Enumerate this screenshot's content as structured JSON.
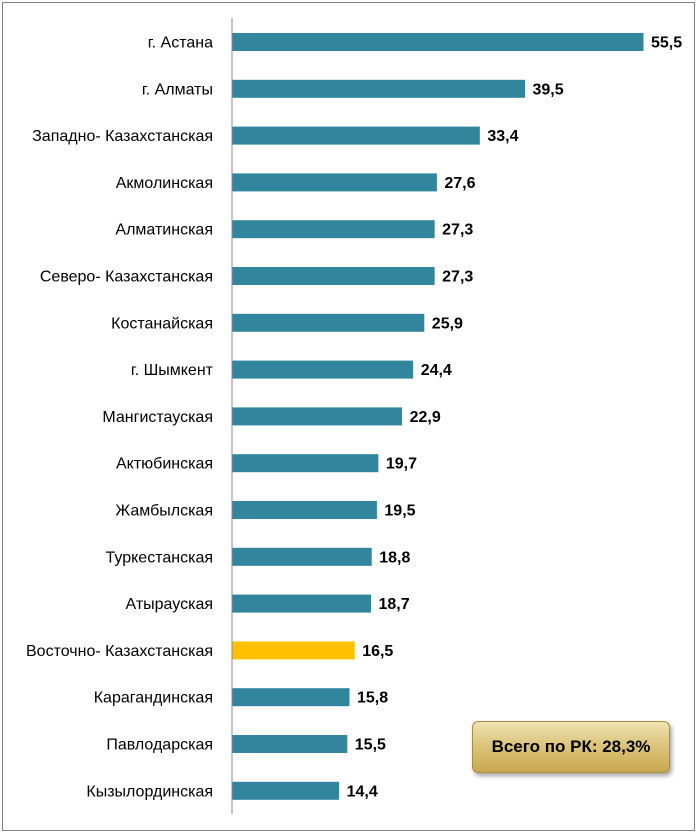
{
  "chart_data": {
    "type": "bar",
    "orientation": "horizontal",
    "categories": [
      "г. Астана",
      "г. Алматы",
      "Западно- Казахстанская",
      "Акмолинская",
      "Алматинская",
      "Северо- Казахстанская",
      "Костанайская",
      "г. Шымкент",
      "Мангистауская",
      "Актюбинская",
      "Жамбылская",
      "Туркестанская",
      "Атырауская",
      "Восточно- Казахстанская",
      "Карагандинская",
      "Павлодарская",
      "Кызылординская"
    ],
    "values": [
      55.5,
      39.5,
      33.4,
      27.6,
      27.3,
      27.3,
      25.9,
      24.4,
      22.9,
      19.7,
      19.5,
      18.8,
      18.7,
      16.5,
      15.8,
      15.5,
      14.4
    ],
    "value_labels": [
      "55,5",
      "39,5",
      "33,4",
      "27,6",
      "27,3",
      "27,3",
      "25,9",
      "24,4",
      "22,9",
      "19,7",
      "19,5",
      "18,8",
      "18,7",
      "16,5",
      "15,8",
      "15,5",
      "14,4"
    ],
    "highlight_index": 13,
    "xlim": [
      0,
      56
    ],
    "grid": false,
    "bar_color": "#31859c",
    "highlight_color": "#ffc000"
  },
  "total_badge": {
    "text": "Всего по РК: 28,3%"
  }
}
